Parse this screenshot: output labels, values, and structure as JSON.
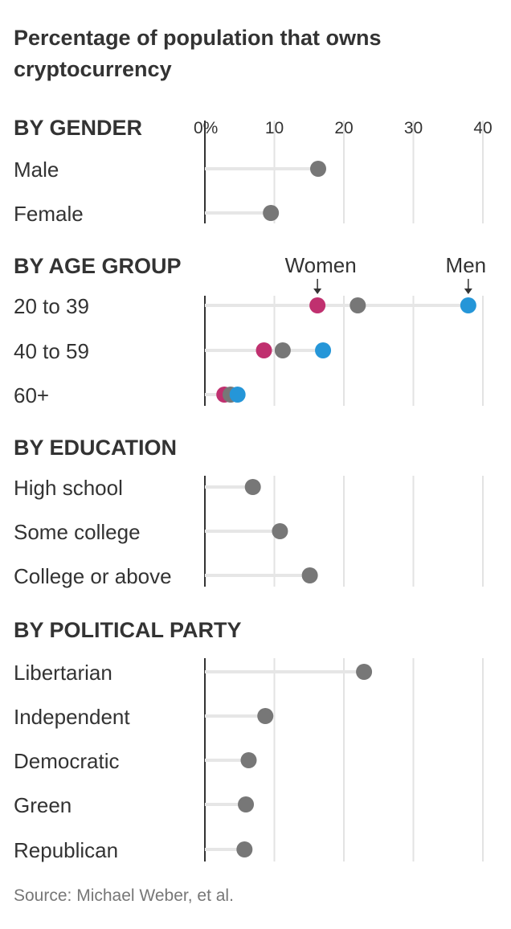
{
  "chart_data": {
    "type": "dot",
    "title": "Percentage of population that owns cryptocurrency",
    "x_ticks": [
      "0%",
      "10",
      "20",
      "30",
      "40"
    ],
    "xlim": [
      0,
      40
    ],
    "grid": true,
    "legend": {
      "women": "Women",
      "men": "Men"
    },
    "colors": {
      "overall": "#777777",
      "women": "#c0306f",
      "men": "#2596d8",
      "track": "#e6e6e6",
      "axis": "#333333"
    },
    "source": "Source: Michael Weber, et al.",
    "sections": [
      {
        "heading": "BY GENDER",
        "rows": [
          {
            "label": "Male",
            "overall": 16.3
          },
          {
            "label": "Female",
            "overall": 9.5
          }
        ]
      },
      {
        "heading": "BY AGE GROUP",
        "rows": [
          {
            "label": "20 to 39",
            "overall": 22.0,
            "women": 16.2,
            "men": 37.9
          },
          {
            "label": "40 to 59",
            "overall": 11.2,
            "women": 8.5,
            "men": 17.0
          },
          {
            "label": "60+",
            "overall": 3.7,
            "women": 2.8,
            "men": 4.7
          }
        ]
      },
      {
        "heading": "BY EDUCATION",
        "rows": [
          {
            "label": "High school",
            "overall": 6.9
          },
          {
            "label": "Some college",
            "overall": 10.8
          },
          {
            "label": "College or above",
            "overall": 15.1
          }
        ]
      },
      {
        "heading": "BY POLITICAL PARTY",
        "rows": [
          {
            "label": "Libertarian",
            "overall": 22.9
          },
          {
            "label": "Independent",
            "overall": 8.7
          },
          {
            "label": "Democratic",
            "overall": 6.3
          },
          {
            "label": "Green",
            "overall": 5.9
          },
          {
            "label": "Republican",
            "overall": 5.7
          }
        ]
      }
    ]
  }
}
